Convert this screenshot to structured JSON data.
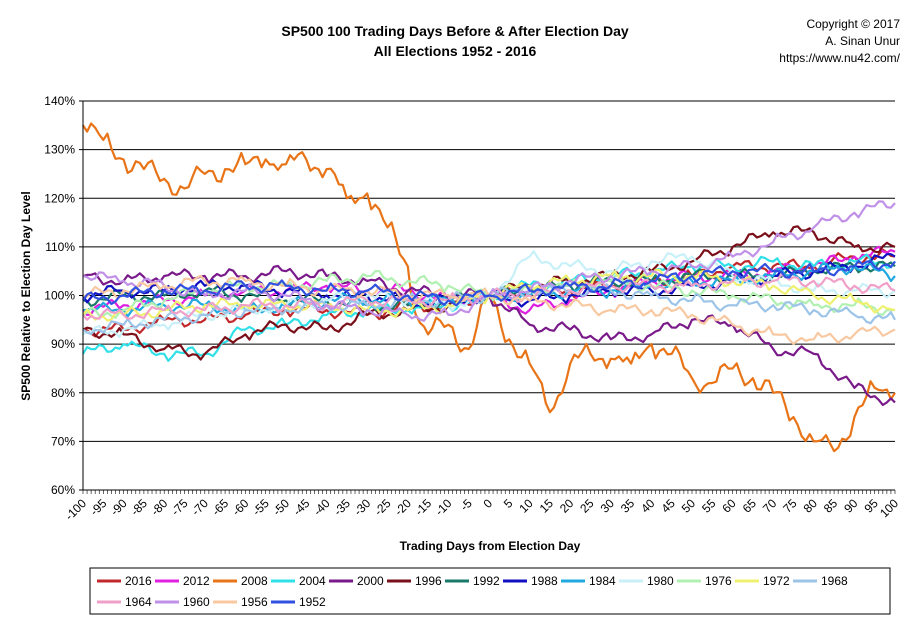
{
  "chart_data": {
    "type": "line",
    "title": "SP500 100 Trading Days Before & After Election Day",
    "subtitle": "All Elections 1952 - 2016",
    "copyright": [
      "Copyright © 2017",
      "A. Sinan Unur",
      "https://www.nu42.com/"
    ],
    "xlabel": "Trading Days from Election Day",
    "ylabel": "SP500 Relative to Election Day Level",
    "xlim": [
      -100,
      100
    ],
    "ylim": [
      60,
      140
    ],
    "x_ticks": [
      -100,
      -95,
      -90,
      -85,
      -80,
      -75,
      -70,
      -65,
      -60,
      -55,
      -50,
      -45,
      -40,
      -35,
      -30,
      -25,
      -20,
      -15,
      -10,
      -5,
      0,
      5,
      10,
      15,
      20,
      25,
      30,
      35,
      40,
      45,
      50,
      55,
      60,
      65,
      70,
      75,
      80,
      85,
      90,
      95,
      100
    ],
    "y_ticks": [
      60,
      70,
      80,
      90,
      100,
      110,
      120,
      130,
      140
    ],
    "y_tick_suffix": "%",
    "grid": "horizontal",
    "legend": "bottom",
    "series": [
      {
        "name": "2016",
        "color": "#c0282b",
        "x": [
          -100,
          -90,
          -80,
          -70,
          -60,
          -50,
          -40,
          -30,
          -20,
          -10,
          0,
          10,
          20,
          30,
          40,
          50,
          60,
          70,
          80,
          90,
          100
        ],
        "values": [
          93,
          93,
          95,
          95,
          96,
          97,
          97,
          96,
          98,
          98,
          100,
          101,
          101,
          102,
          103,
          104,
          106,
          106,
          106,
          108,
          108
        ]
      },
      {
        "name": "2012",
        "color": "#e020e0",
        "x": [
          -100,
          -90,
          -80,
          -70,
          -60,
          -50,
          -40,
          -30,
          -20,
          -10,
          0,
          10,
          20,
          30,
          40,
          50,
          60,
          70,
          80,
          90,
          100
        ],
        "values": [
          97,
          98,
          99,
          100,
          101,
          101,
          102,
          101,
          101,
          99,
          100,
          97,
          99,
          101,
          103,
          104,
          104,
          105,
          106,
          108,
          109
        ]
      },
      {
        "name": "2008",
        "color": "#e87417",
        "x": [
          -100,
          -95,
          -90,
          -85,
          -80,
          -75,
          -70,
          -65,
          -60,
          -55,
          -50,
          -45,
          -40,
          -35,
          -30,
          -25,
          -20,
          -18,
          -15,
          -10,
          -5,
          0,
          5,
          10,
          15,
          20,
          25,
          30,
          35,
          40,
          45,
          50,
          55,
          60,
          65,
          70,
          75,
          80,
          85,
          90,
          95,
          100
        ],
        "values": [
          135,
          132,
          128,
          126,
          124,
          122,
          125,
          126,
          127,
          128,
          127,
          128,
          126,
          120,
          121,
          114,
          106,
          96,
          92,
          94,
          89,
          100,
          91,
          86,
          76,
          86,
          88,
          87,
          86,
          90,
          88,
          83,
          82,
          85,
          83,
          80,
          75,
          70,
          68,
          75,
          81,
          80
        ]
      },
      {
        "name": "2004",
        "color": "#30e0e8",
        "x": [
          -100,
          -90,
          -80,
          -70,
          -60,
          -50,
          -40,
          -30,
          -20,
          -10,
          0,
          10,
          20,
          30,
          40,
          50,
          60,
          70,
          80,
          90,
          100
        ],
        "values": [
          88,
          90,
          88,
          88,
          93,
          94,
          96,
          97,
          97,
          98,
          100,
          102,
          103,
          104,
          105,
          106,
          106,
          107,
          106,
          107,
          107
        ]
      },
      {
        "name": "2000",
        "color": "#7a1a8a",
        "x": [
          -100,
          -90,
          -80,
          -70,
          -60,
          -50,
          -40,
          -30,
          -20,
          -10,
          0,
          10,
          20,
          30,
          40,
          50,
          60,
          70,
          80,
          90,
          100
        ],
        "values": [
          104,
          103,
          104,
          104,
          104,
          105,
          104,
          103,
          101,
          100,
          100,
          94,
          93,
          91,
          92,
          95,
          94,
          89,
          88,
          81,
          78
        ]
      },
      {
        "name": "1996",
        "color": "#7a0f1a",
        "x": [
          -100,
          -90,
          -80,
          -70,
          -60,
          -50,
          -40,
          -30,
          -20,
          -10,
          0,
          10,
          20,
          30,
          40,
          50,
          60,
          70,
          80,
          90,
          100
        ],
        "values": [
          93,
          92,
          89,
          88,
          92,
          94,
          93,
          96,
          97,
          98,
          100,
          102,
          103,
          104,
          105,
          107,
          110,
          113,
          113,
          110,
          110
        ]
      },
      {
        "name": "1992",
        "color": "#1a7a6a",
        "x": [
          -100,
          -90,
          -80,
          -70,
          -60,
          -50,
          -40,
          -30,
          -20,
          -10,
          0,
          10,
          20,
          30,
          40,
          50,
          60,
          70,
          80,
          90,
          100
        ],
        "values": [
          99,
          100,
          100,
          101,
          100,
          99,
          99,
          98,
          98,
          99,
          100,
          101,
          102,
          103,
          103,
          104,
          104,
          104,
          105,
          106,
          106
        ]
      },
      {
        "name": "1988",
        "color": "#1010c0",
        "x": [
          -100,
          -90,
          -80,
          -70,
          -60,
          -50,
          -40,
          -30,
          -20,
          -10,
          0,
          10,
          20,
          30,
          40,
          50,
          60,
          70,
          80,
          90,
          100
        ],
        "values": [
          100,
          101,
          101,
          102,
          102,
          101,
          100,
          100,
          99,
          99,
          100,
          99,
          100,
          101,
          101,
          102,
          103,
          104,
          105,
          106,
          108
        ]
      },
      {
        "name": "1984",
        "color": "#20a8e0",
        "x": [
          -100,
          -90,
          -80,
          -70,
          -60,
          -50,
          -40,
          -30,
          -20,
          -10,
          0,
          10,
          20,
          30,
          40,
          50,
          60,
          70,
          80,
          90,
          100
        ],
        "values": [
          97,
          97,
          98,
          98,
          97,
          98,
          99,
          99,
          99,
          99,
          100,
          100,
          101,
          101,
          102,
          103,
          103,
          104,
          105,
          106,
          104
        ]
      },
      {
        "name": "1980",
        "color": "#c8f0f8",
        "x": [
          -100,
          -90,
          -80,
          -70,
          -60,
          -50,
          -40,
          -30,
          -20,
          -10,
          0,
          10,
          20,
          30,
          40,
          50,
          60,
          70,
          80,
          90,
          100
        ],
        "values": [
          92,
          93,
          94,
          96,
          97,
          98,
          99,
          100,
          99,
          98,
          100,
          108,
          106,
          105,
          107,
          108,
          104,
          103,
          101,
          101,
          101
        ]
      },
      {
        "name": "1976",
        "color": "#b0f0b0",
        "x": [
          -100,
          -90,
          -80,
          -70,
          -60,
          -50,
          -40,
          -30,
          -20,
          -10,
          0,
          10,
          20,
          30,
          40,
          50,
          60,
          70,
          80,
          90,
          100
        ],
        "values": [
          96,
          97,
          99,
          101,
          102,
          102,
          103,
          104,
          103,
          102,
          100,
          101,
          102,
          103,
          102,
          101,
          100,
          99,
          98,
          98,
          97
        ]
      },
      {
        "name": "1972",
        "color": "#f0f070",
        "x": [
          -100,
          -90,
          -80,
          -70,
          -60,
          -50,
          -40,
          -30,
          -20,
          -10,
          0,
          10,
          20,
          30,
          40,
          50,
          60,
          70,
          80,
          90,
          100
        ],
        "values": [
          96,
          96,
          97,
          98,
          98,
          98,
          98,
          97,
          97,
          98,
          100,
          102,
          103,
          104,
          104,
          104,
          103,
          102,
          100,
          99,
          97
        ]
      },
      {
        "name": "1968",
        "color": "#9cc4e8",
        "x": [
          -100,
          -90,
          -80,
          -70,
          -60,
          -50,
          -40,
          -30,
          -20,
          -10,
          0,
          10,
          20,
          30,
          40,
          50,
          60,
          70,
          80,
          90,
          100
        ],
        "values": [
          93,
          94,
          95,
          96,
          97,
          97,
          98,
          98,
          99,
          99,
          100,
          101,
          101,
          101,
          100,
          99,
          98,
          98,
          97,
          96,
          95
        ]
      },
      {
        "name": "1964",
        "color": "#f0a0c8",
        "x": [
          -100,
          -90,
          -80,
          -70,
          -60,
          -50,
          -40,
          -30,
          -20,
          -10,
          0,
          10,
          20,
          30,
          40,
          50,
          60,
          70,
          80,
          90,
          100
        ],
        "values": [
          96,
          96,
          97,
          97,
          98,
          98,
          98,
          99,
          99,
          99,
          100,
          100,
          101,
          102,
          102,
          102,
          103,
          103,
          103,
          102,
          101
        ]
      },
      {
        "name": "1960",
        "color": "#c090e8",
        "x": [
          -100,
          -90,
          -80,
          -70,
          -60,
          -50,
          -40,
          -30,
          -20,
          -10,
          0,
          10,
          20,
          30,
          40,
          50,
          60,
          70,
          80,
          90,
          100
        ],
        "values": [
          104,
          103,
          102,
          100,
          101,
          100,
          98,
          97,
          96,
          96,
          100,
          101,
          103,
          104,
          105,
          106,
          108,
          111,
          114,
          117,
          119
        ]
      },
      {
        "name": "1956",
        "color": "#f8c8a0",
        "x": [
          -100,
          -90,
          -80,
          -70,
          -60,
          -50,
          -40,
          -30,
          -20,
          -10,
          0,
          10,
          20,
          30,
          40,
          50,
          60,
          70,
          80,
          90,
          100
        ],
        "values": [
          100,
          101,
          102,
          103,
          103,
          102,
          101,
          101,
          100,
          100,
          100,
          99,
          98,
          97,
          97,
          96,
          94,
          92,
          91,
          92,
          93
        ]
      },
      {
        "name": "1952",
        "color": "#3050e0",
        "x": [
          -100,
          -90,
          -80,
          -70,
          -60,
          -50,
          -40,
          -30,
          -20,
          -10,
          0,
          10,
          20,
          30,
          40,
          50,
          60,
          70,
          80,
          90,
          100
        ],
        "values": [
          99,
          100,
          101,
          101,
          102,
          102,
          101,
          101,
          100,
          99,
          100,
          101,
          102,
          102,
          103,
          104,
          105,
          105,
          105,
          106,
          107
        ]
      }
    ]
  }
}
